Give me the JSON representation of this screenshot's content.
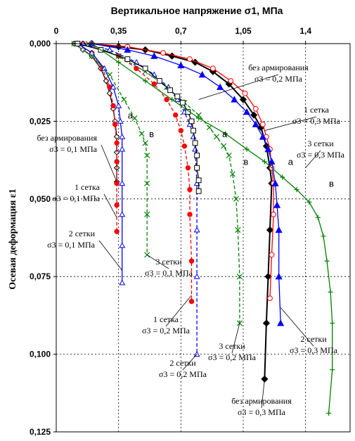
{
  "chart_data": {
    "type": "line",
    "title": "Вертикальное напряжение σ1, МПа",
    "xlabel": "Вертикальное напряжение σ1, МПа",
    "ylabel": "Осевая деформация ε1",
    "x_ticks": [
      "0",
      "0,35",
      "0,7",
      "1,05",
      "1,4"
    ],
    "y_ticks": [
      "0,000",
      "0,025",
      "0,050",
      "0,075",
      "0,100",
      "0,125"
    ],
    "xlim": [
      0,
      1.65
    ],
    "ylim": [
      0,
      0.125
    ],
    "y_inverted": true,
    "x_axis_position": "top",
    "grid": true,
    "series": [
      {
        "name": "без армирования σ3 = 0,1 МПа",
        "color": "#000000",
        "marker": "diamond-open",
        "dash": "solid",
        "x": [
          0.1,
          0.15,
          0.2,
          0.25,
          0.28,
          0.3,
          0.32,
          0.33,
          0.34,
          0.34,
          0.34,
          0.34
        ],
        "y": [
          0,
          0.002,
          0.004,
          0.008,
          0.012,
          0.016,
          0.021,
          0.025,
          0.03,
          0.035,
          0.04,
          0.0445
        ]
      },
      {
        "name": "1 сетка σ3 = 0,1 МПа",
        "color": "#ff0000",
        "marker": "circle-filled",
        "dash": "dash",
        "x": [
          0.12,
          0.2,
          0.26,
          0.3,
          0.32,
          0.33,
          0.34,
          0.34,
          0.34,
          0.34,
          0.34
        ],
        "y": [
          0,
          0.003,
          0.008,
          0.014,
          0.02,
          0.026,
          0.032,
          0.038,
          0.045,
          0.052,
          0.0605
        ]
      },
      {
        "name": "2 сетки σ3 = 0,1 МПа",
        "color": "#0000ff",
        "marker": "triangle-open",
        "dash": "solid",
        "x": [
          0.12,
          0.2,
          0.27,
          0.32,
          0.35,
          0.36,
          0.37,
          0.37,
          0.37,
          0.37,
          0.37,
          0.37
        ],
        "y": [
          0,
          0.003,
          0.008,
          0.014,
          0.02,
          0.025,
          0.03,
          0.034,
          0.045,
          0.055,
          0.065,
          0.077
        ]
      },
      {
        "name": "3 сетки σ3 = 0,1 МПа",
        "color": "#008000",
        "marker": "x",
        "dash": "dash",
        "x": [
          0.1,
          0.2,
          0.3,
          0.38,
          0.44,
          0.48,
          0.5,
          0.51,
          0.51,
          0.51,
          0.51
        ],
        "y": [
          0,
          0.004,
          0.01,
          0.018,
          0.024,
          0.029,
          0.032,
          0.036,
          0.045,
          0.055,
          0.068
        ]
      },
      {
        "name": "1 сетка σ3 = 0,2 МПа",
        "color": "#ff0000",
        "marker": "circle-filled",
        "dash": "dash",
        "x": [
          0.15,
          0.25,
          0.35,
          0.45,
          0.55,
          0.62,
          0.67,
          0.7,
          0.72,
          0.74,
          0.75,
          0.75,
          0.76,
          0.76
        ],
        "y": [
          0,
          0.002,
          0.004,
          0.008,
          0.013,
          0.018,
          0.023,
          0.028,
          0.033,
          0.04,
          0.047,
          0.055,
          0.07,
          0.083
        ]
      },
      {
        "name": "2 сетки σ3 = 0,2 МПа",
        "color": "#0000ff",
        "marker": "triangle-open",
        "dash": "dash",
        "x": [
          0.15,
          0.3,
          0.45,
          0.55,
          0.63,
          0.68,
          0.72,
          0.75,
          0.77,
          0.78,
          0.79,
          0.79,
          0.79,
          0.79
        ],
        "y": [
          0,
          0.002,
          0.006,
          0.01,
          0.014,
          0.018,
          0.022,
          0.026,
          0.03,
          0.034,
          0.045,
          0.06,
          0.075,
          0.1
        ]
      },
      {
        "name": "3 сетки σ3 = 0,2 МПа",
        "color": "#008000",
        "marker": "x",
        "dash": "dash",
        "x": [
          0.18,
          0.35,
          0.5,
          0.62,
          0.72,
          0.8,
          0.86,
          0.9,
          0.94,
          0.97,
          0.99,
          1.01,
          1.02,
          1.03,
          1.03
        ],
        "y": [
          0,
          0.004,
          0.009,
          0.014,
          0.019,
          0.023,
          0.027,
          0.03,
          0.033,
          0.036,
          0.042,
          0.05,
          0.06,
          0.075,
          0.09
        ]
      },
      {
        "name": "без армирования σ3 = 0,2 МПа",
        "color": "#000000",
        "marker": "square-open",
        "dash": "solid",
        "x": [
          0.12,
          0.25,
          0.4,
          0.5,
          0.58,
          0.64,
          0.68,
          0.71,
          0.74,
          0.76,
          0.77,
          0.78,
          0.79,
          0.79,
          0.8,
          0.8
        ],
        "y": [
          0,
          0.002,
          0.005,
          0.008,
          0.012,
          0.015,
          0.017,
          0.019,
          0.022,
          0.025,
          0.028,
          0.032,
          0.036,
          0.04,
          0.044,
          0.0475
        ]
      },
      {
        "name": "без армирования σ3 = 0,3 МПа",
        "color": "#000000",
        "marker": "diamond-filled",
        "dash": "solid",
        "x": [
          0.2,
          0.35,
          0.5,
          0.65,
          0.78,
          0.88,
          0.97,
          1.05,
          1.11,
          1.15,
          1.18,
          1.2,
          1.21,
          1.2,
          1.19,
          1.18,
          1.17
        ],
        "y": [
          0,
          0.001,
          0.002,
          0.004,
          0.006,
          0.009,
          0.013,
          0.018,
          0.023,
          0.027,
          0.033,
          0.04,
          0.045,
          0.06,
          0.075,
          0.09,
          0.108
        ]
      },
      {
        "name": "1 сетка σ3 = 0,3 МПа",
        "color": "#ff0000",
        "marker": "circle-open",
        "dash": "solid",
        "x": [
          0.2,
          0.4,
          0.6,
          0.75,
          0.88,
          0.98,
          1.06,
          1.12,
          1.16,
          1.18,
          1.2,
          1.21,
          1.22,
          1.22,
          1.21,
          1.2
        ],
        "y": [
          0,
          0.001,
          0.003,
          0.005,
          0.008,
          0.012,
          0.016,
          0.021,
          0.026,
          0.03,
          0.034,
          0.04,
          0.045,
          0.055,
          0.068,
          0.082
        ]
      },
      {
        "name": "2 сетки σ3 = 0,3 МПа",
        "color": "#0000ff",
        "marker": "triangle-filled",
        "dash": "solid",
        "x": [
          0.2,
          0.4,
          0.55,
          0.7,
          0.82,
          0.92,
          1.0,
          1.07,
          1.12,
          1.16,
          1.19,
          1.21,
          1.23,
          1.24,
          1.25,
          1.25,
          1.26
        ],
        "y": [
          0,
          0.002,
          0.004,
          0.007,
          0.01,
          0.014,
          0.018,
          0.022,
          0.026,
          0.03,
          0.034,
          0.038,
          0.045,
          0.052,
          0.06,
          0.075,
          0.09
        ]
      },
      {
        "name": "3 сетки σ3 = 0,3 МПа",
        "color": "#008000",
        "marker": "plus",
        "dash": "solid",
        "x": [
          0.2,
          0.35,
          0.5,
          0.65,
          0.8,
          0.95,
          1.07,
          1.17,
          1.27,
          1.35,
          1.42,
          1.47,
          1.5,
          1.52,
          1.54,
          1.55,
          1.55,
          1.53
        ],
        "y": [
          0,
          0.006,
          0.012,
          0.018,
          0.024,
          0.029,
          0.034,
          0.038,
          0.043,
          0.047,
          0.051,
          0.056,
          0.062,
          0.07,
          0.08,
          0.09,
          0.105,
          0.119
        ]
      }
    ],
    "annotations": [
      {
        "line1": "без армирования",
        "line2": "σ3 = 0,1 МПа",
        "x": 0.34,
        "y": 0.0445
      },
      {
        "line1": "1 сетка",
        "line2": "σ3 = 0,1 МПа",
        "x": 0.34,
        "y": 0.056
      },
      {
        "line1": "2 сетки",
        "line2": "σ3 = 0,1 МПа",
        "x": 0.37,
        "y": 0.073
      },
      {
        "line1": "3 сетки",
        "line2": "σ3 = 0,1 МПа",
        "x": 0.51,
        "y": 0.068
      },
      {
        "line1": "1 сетка",
        "line2": "σ3 = 0,2 МПа",
        "x": 0.76,
        "y": 0.081
      },
      {
        "line1": "2 сетки",
        "line2": "σ3 = 0,2 МПа",
        "x": 0.79,
        "y": 0.1
      },
      {
        "line1": "3 сетки",
        "line2": "σ3 = 0,2 МПа",
        "x": 1.03,
        "y": 0.09
      },
      {
        "line1": "без армирования",
        "line2": "σ3 = 0,2 МПа",
        "x": 0.8,
        "y": 0.018
      },
      {
        "line1": "без армирования",
        "line2": "σ3 = 0,3 МПа",
        "x": 1.17,
        "y": 0.108
      },
      {
        "line1": "1 сетка",
        "line2": "σ3 = 0,3 МПа",
        "x": 1.17,
        "y": 0.028
      },
      {
        "line1": "2 сетки",
        "line2": "σ3 = 0,3 МПа",
        "x": 1.26,
        "y": 0.085
      },
      {
        "line1": "3 сетки",
        "line2": "σ3 = 0,3 МПа",
        "x": 1.4,
        "y": 0.04
      }
    ],
    "point_labels": [
      {
        "text": "а",
        "x": 0.37,
        "y": 0.025
      },
      {
        "text": "в",
        "x": 0.49,
        "y": 0.031
      },
      {
        "text": "а",
        "x": 0.9,
        "y": 0.031
      },
      {
        "text": "в",
        "x": 1.02,
        "y": 0.04
      },
      {
        "text": "а",
        "x": 1.27,
        "y": 0.04
      },
      {
        "text": "в",
        "x": 1.5,
        "y": 0.047
      }
    ]
  }
}
